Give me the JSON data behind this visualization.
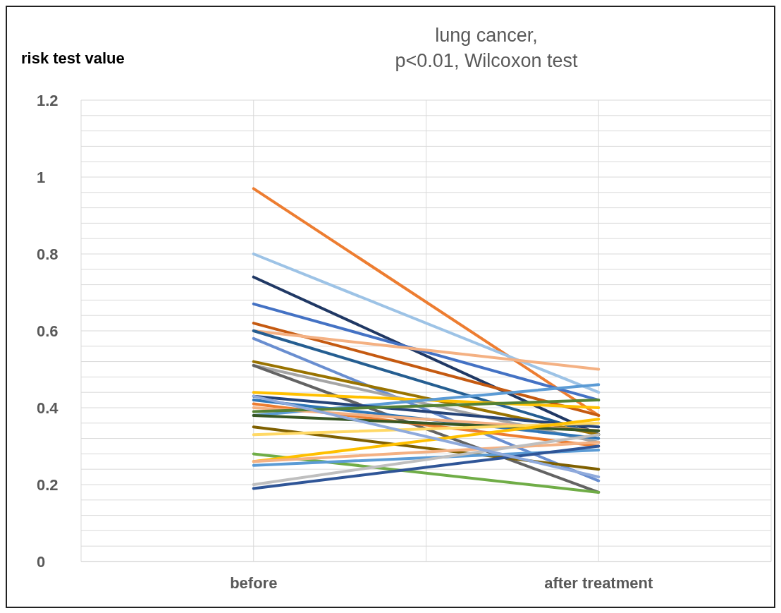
{
  "chart_data": {
    "type": "line",
    "title": "lung cancer,\np<0.01, Wilcoxon test",
    "ylabel": "risk test value",
    "categories": [
      null,
      "before",
      null,
      "after treatment",
      null
    ],
    "ylim": [
      0,
      1.2
    ],
    "yticks": [
      0,
      {
        "value": 0.04,
        "label": null
      },
      {
        "value": 0.08,
        "label": null
      },
      {
        "value": 0.12,
        "label": null
      },
      {
        "value": 0.16,
        "label": null
      },
      0.2,
      {
        "value": 0.24,
        "label": null
      },
      {
        "value": 0.28,
        "label": null
      },
      {
        "value": 0.32,
        "label": null
      },
      {
        "value": 0.36,
        "label": null
      },
      0.4,
      {
        "value": 0.44,
        "label": null
      },
      {
        "value": 0.48,
        "label": null
      },
      {
        "value": 0.52,
        "label": null
      },
      {
        "value": 0.56,
        "label": null
      },
      0.6,
      {
        "value": 0.64,
        "label": null
      },
      {
        "value": 0.68,
        "label": null
      },
      {
        "value": 0.72,
        "label": null
      },
      {
        "value": 0.76,
        "label": null
      },
      0.8,
      {
        "value": 0.84,
        "label": null
      },
      {
        "value": 0.88,
        "label": null
      },
      {
        "value": 0.92,
        "label": null
      },
      {
        "value": 0.96,
        "label": null
      },
      1,
      {
        "value": 1.04,
        "label": null
      },
      {
        "value": 1.08,
        "label": null
      },
      {
        "value": 1.12,
        "label": null
      },
      {
        "value": 1.16,
        "label": null
      },
      1.2
    ],
    "grid": true,
    "marker": "none",
    "line_style": "solid",
    "series": [
      {
        "color": "#ed7d31",
        "values": [
          null,
          0.97,
          null,
          0.38,
          null
        ]
      },
      {
        "color": "#9dc3e6",
        "values": [
          null,
          0.8,
          null,
          0.44,
          null
        ]
      },
      {
        "color": "#203864",
        "values": [
          null,
          0.74,
          null,
          0.33,
          null
        ]
      },
      {
        "color": "#4472c4",
        "values": [
          null,
          0.67,
          null,
          0.42,
          null
        ]
      },
      {
        "color": "#c55a11",
        "values": [
          null,
          0.62,
          null,
          0.38,
          null
        ]
      },
      {
        "color": "#f4b183",
        "values": [
          null,
          0.6,
          null,
          0.5,
          null
        ]
      },
      {
        "color": "#255e91",
        "values": [
          null,
          0.6,
          null,
          0.33,
          null
        ]
      },
      {
        "color": "#698ed0",
        "values": [
          null,
          0.58,
          null,
          0.21,
          null
        ]
      },
      {
        "color": "#997300",
        "values": [
          null,
          0.52,
          null,
          0.33,
          null
        ]
      },
      {
        "color": "#a5a5a5",
        "values": [
          null,
          0.51,
          null,
          0.31,
          null
        ]
      },
      {
        "color": "#636363",
        "values": [
          null,
          0.51,
          null,
          0.18,
          null
        ]
      },
      {
        "color": "#ffc000",
        "values": [
          null,
          0.44,
          null,
          0.4,
          null
        ]
      },
      {
        "color": "#5b9bd5",
        "values": [
          null,
          0.38,
          null,
          0.46,
          null
        ]
      },
      {
        "color": "#264478",
        "values": [
          null,
          0.43,
          null,
          0.35,
          null
        ]
      },
      {
        "color": "#2e75b6",
        "values": [
          null,
          0.42,
          null,
          0.32,
          null
        ]
      },
      {
        "color": "#ed7d31",
        "values": [
          null,
          0.41,
          null,
          0.3,
          null
        ]
      },
      {
        "color": "#f4b183",
        "values": [
          null,
          0.4,
          null,
          0.34,
          null
        ]
      },
      {
        "color": "#548235",
        "values": [
          null,
          0.39,
          null,
          0.42,
          null
        ]
      },
      {
        "color": "#375623",
        "values": [
          null,
          0.38,
          null,
          0.34,
          null
        ]
      },
      {
        "color": "#7f6000",
        "values": [
          null,
          0.35,
          null,
          0.24,
          null
        ]
      },
      {
        "color": "#ffd966",
        "values": [
          null,
          0.33,
          null,
          0.36,
          null
        ]
      },
      {
        "color": "#70ad47",
        "values": [
          null,
          0.28,
          null,
          0.18,
          null
        ]
      },
      {
        "color": "#ffc000",
        "values": [
          null,
          0.26,
          null,
          0.37,
          null
        ]
      },
      {
        "color": "#f4b183",
        "values": [
          null,
          0.26,
          null,
          0.31,
          null
        ]
      },
      {
        "color": "#5b9bd5",
        "values": [
          null,
          0.25,
          null,
          0.29,
          null
        ]
      },
      {
        "color": "#bfbfbf",
        "values": [
          null,
          0.2,
          null,
          0.33,
          null
        ]
      },
      {
        "color": "#2f5597",
        "values": [
          null,
          0.19,
          null,
          0.3,
          null
        ]
      },
      {
        "color": "#8faadc",
        "values": [
          null,
          0.43,
          null,
          0.22,
          null
        ]
      }
    ]
  }
}
